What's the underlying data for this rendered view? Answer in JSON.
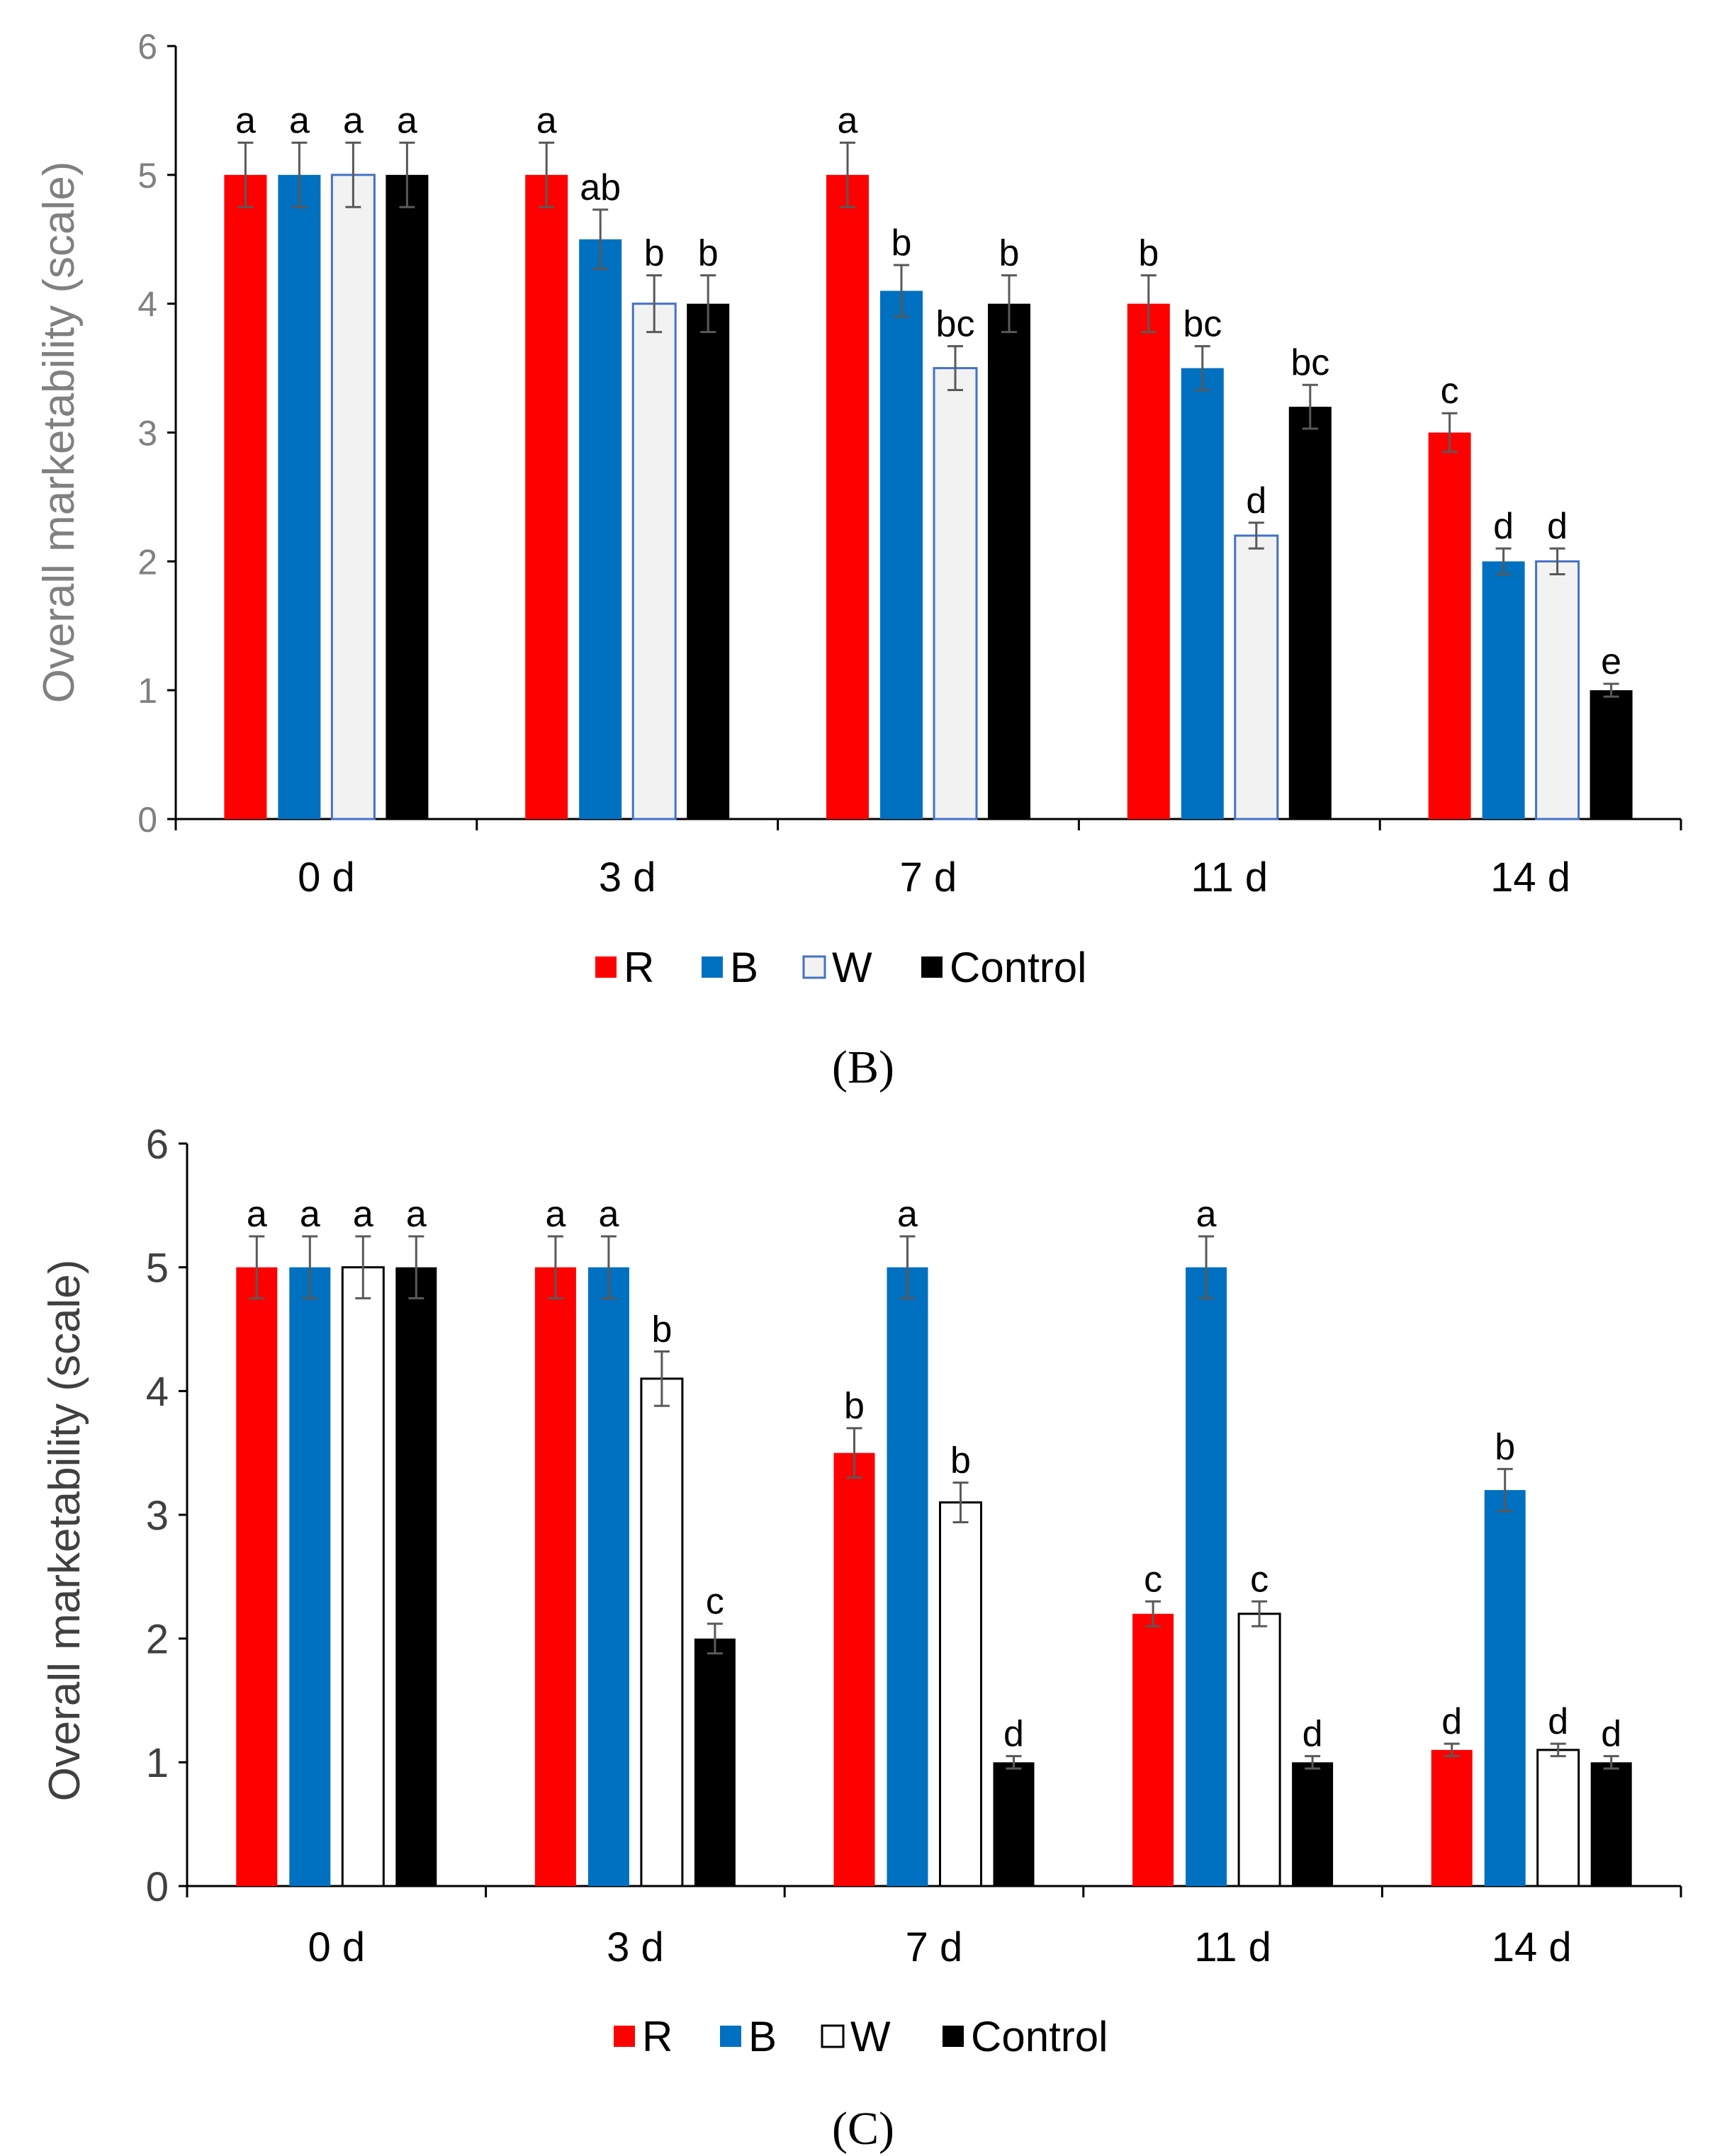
{
  "panels": [
    {
      "panel_label": "(B)",
      "chart_data": {
        "type": "bar",
        "ylabel": "Overall marketability (scale)",
        "xlabel": "",
        "ylim": [
          0,
          6
        ],
        "yticks": [
          "0",
          "1",
          "2",
          "3",
          "4",
          "5",
          "6"
        ],
        "categories": [
          "0 d",
          "3 d",
          "7 d",
          "11 d",
          "14 d"
        ],
        "series": [
          {
            "name": "R",
            "color": "#ff0000",
            "outline": false,
            "values": [
              5,
              5,
              5,
              4,
              3
            ],
            "errors": [
              0.25,
              0.25,
              0.25,
              0.22,
              0.15
            ],
            "letters": [
              "a",
              "a",
              "a",
              "b",
              "c"
            ]
          },
          {
            "name": "B",
            "color": "#0070c0",
            "outline": false,
            "values": [
              5,
              4.5,
              4.1,
              3.5,
              2
            ],
            "errors": [
              0.25,
              0.23,
              0.2,
              0.17,
              0.1
            ],
            "letters": [
              "a",
              "ab",
              "b",
              "bc",
              "d"
            ]
          },
          {
            "name": "W",
            "color": "#f2f2f2",
            "stroke": "#4472c4",
            "outline": true,
            "values": [
              5,
              4,
              3.5,
              2.2,
              2
            ],
            "errors": [
              0.25,
              0.22,
              0.17,
              0.1,
              0.1
            ],
            "letters": [
              "a",
              "b",
              "bc",
              "d",
              "d"
            ]
          },
          {
            "name": "Control",
            "color": "#000000",
            "outline": false,
            "values": [
              5,
              4,
              4,
              3.2,
              1
            ],
            "errors": [
              0.25,
              0.22,
              0.22,
              0.17,
              0.05
            ],
            "letters": [
              "a",
              "b",
              "b",
              "bc",
              "e"
            ]
          }
        ],
        "legend": [
          "R",
          "B",
          "W",
          "Control"
        ]
      }
    },
    {
      "panel_label": "(C)",
      "chart_data": {
        "type": "bar",
        "ylabel": "Overall marketability (scale)",
        "xlabel": "",
        "ylim": [
          0,
          6
        ],
        "yticks": [
          "0",
          "1",
          "2",
          "3",
          "4",
          "5",
          "6"
        ],
        "categories": [
          "0 d",
          "3 d",
          "7 d",
          "11 d",
          "14 d"
        ],
        "series": [
          {
            "name": "R",
            "color": "#ff0000",
            "outline": false,
            "values": [
              5,
              5,
              3.5,
              2.2,
              1.1
            ],
            "errors": [
              0.25,
              0.25,
              0.2,
              0.1,
              0.05
            ],
            "letters": [
              "a",
              "a",
              "b",
              "c",
              "d"
            ]
          },
          {
            "name": "B",
            "color": "#0070c0",
            "outline": false,
            "values": [
              5,
              5,
              5,
              5,
              3.2
            ],
            "errors": [
              0.25,
              0.25,
              0.25,
              0.25,
              0.17
            ],
            "letters": [
              "a",
              "a",
              "a",
              "a",
              "b"
            ]
          },
          {
            "name": "W",
            "color": "#ffffff",
            "stroke": "#000000",
            "outline": true,
            "values": [
              5,
              4.1,
              3.1,
              2.2,
              1.1
            ],
            "errors": [
              0.25,
              0.22,
              0.16,
              0.1,
              0.05
            ],
            "letters": [
              "a",
              "b",
              "b",
              "c",
              "d"
            ]
          },
          {
            "name": "Control",
            "color": "#000000",
            "outline": false,
            "values": [
              5,
              2,
              1,
              1,
              1
            ],
            "errors": [
              0.25,
              0.12,
              0.05,
              0.05,
              0.05
            ],
            "letters": [
              "a",
              "c",
              "d",
              "d",
              "d"
            ]
          }
        ],
        "legend": [
          "R",
          "B",
          "W",
          "Control"
        ]
      }
    }
  ]
}
